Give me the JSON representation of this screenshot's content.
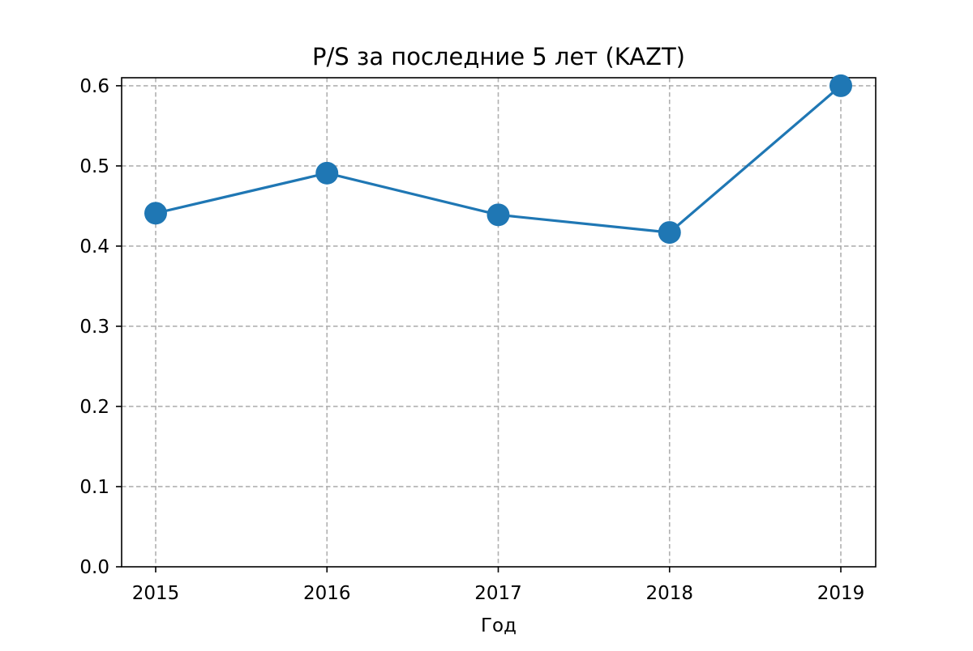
{
  "chart_data": {
    "type": "line",
    "title": "P/S за последние 5 лет (KAZT)",
    "xlabel": "Год",
    "ylabel": "",
    "categories": [
      "2015",
      "2016",
      "2017",
      "2018",
      "2019"
    ],
    "series": [
      {
        "values": [
          0.441,
          0.491,
          0.439,
          0.417,
          0.6
        ],
        "color": "#1f77b4",
        "marker": "circle"
      }
    ],
    "ylim": [
      0,
      0.61
    ],
    "yticks": [
      0.0,
      0.1,
      0.2,
      0.3,
      0.4,
      0.5,
      0.6
    ],
    "ytick_labels": [
      "0.0",
      "0.1",
      "0.2",
      "0.3",
      "0.4",
      "0.5",
      "0.6"
    ],
    "grid": true,
    "legend": "none"
  }
}
